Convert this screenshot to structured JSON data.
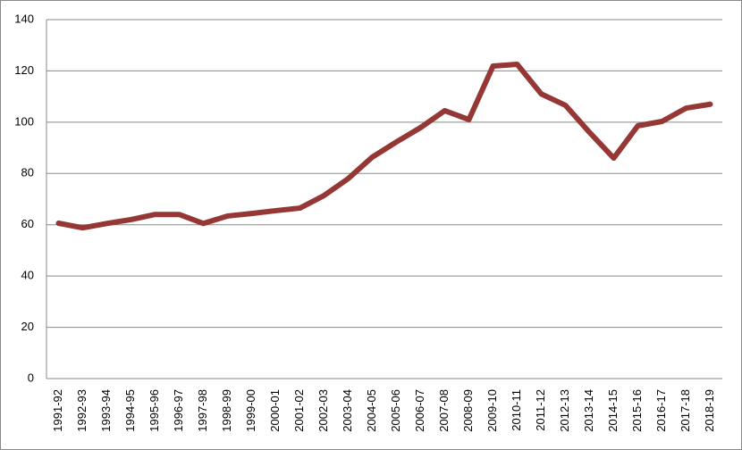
{
  "chart_data": {
    "type": "line",
    "categories": [
      "1991-92",
      "1992-93",
      "1993-94",
      "1994-95",
      "1995-96",
      "1996-97",
      "1997-98",
      "1998-99",
      "1999-00",
      "2000-01",
      "2001-02",
      "2002-03",
      "2003-04",
      "2004-05",
      "2005-06",
      "2006-07",
      "2007-08",
      "2008-09",
      "2009-10",
      "2010-11",
      "2011-12",
      "2012-13",
      "2013-14",
      "2014-15",
      "2015-16",
      "2016-17",
      "2017-18",
      "2018-19"
    ],
    "series": [
      {
        "color": "#953735",
        "values": [
          60.6,
          58.8,
          60.5,
          62,
          64,
          64,
          60.5,
          63.4,
          64.4,
          65.5,
          66.5,
          71.4,
          78,
          86.4,
          92.3,
          97.9,
          104.5,
          101,
          121.9,
          122.6,
          111,
          106.6,
          96,
          86,
          98.6,
          100.3,
          105.5,
          107
        ]
      }
    ],
    "ylim": [
      0,
      140
    ],
    "yticks": [
      0,
      20,
      40,
      60,
      80,
      100,
      120,
      140
    ],
    "grid": true
  }
}
